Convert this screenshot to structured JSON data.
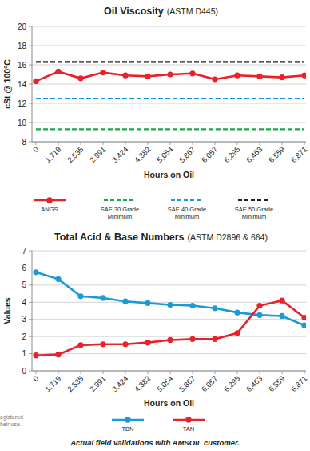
{
  "chart_data": [
    {
      "type": "line",
      "title": "Oil Viscosity",
      "subtitle": "(ASTM D445)",
      "x_label": "Hours on Oil",
      "y_label": "cSt @ 100°C",
      "categories": [
        "0",
        "1,719",
        "2,535",
        "2,991",
        "3,424",
        "4,382",
        "5,054",
        "5,867",
        "6,057",
        "6,295",
        "6,463",
        "6,559",
        "6,871"
      ],
      "ylim": [
        8,
        20
      ],
      "yticks": [
        8,
        10,
        12,
        14,
        16,
        18,
        20
      ],
      "grid": true,
      "legend": "bottom",
      "series": [
        {
          "name": "ANGS",
          "color": "#e8222b",
          "marker": "circle",
          "line_style": "solid",
          "values": [
            14.3,
            15.3,
            14.6,
            15.2,
            14.9,
            14.8,
            15.0,
            15.1,
            14.5,
            14.9,
            14.8,
            14.7,
            14.9
          ]
        },
        {
          "name": "SAE 30 Grade Minimum",
          "color": "#1aa84a",
          "marker": "none",
          "line_style": "dashed",
          "values": [
            9.3,
            9.3,
            9.3,
            9.3,
            9.3,
            9.3,
            9.3,
            9.3,
            9.3,
            9.3,
            9.3,
            9.3,
            9.3
          ]
        },
        {
          "name": "SAE 40 Grade Minimum",
          "color": "#1a9ad6",
          "marker": "none",
          "line_style": "dashed",
          "values": [
            12.5,
            12.5,
            12.5,
            12.5,
            12.5,
            12.5,
            12.5,
            12.5,
            12.5,
            12.5,
            12.5,
            12.5,
            12.5
          ]
        },
        {
          "name": "SAE 50 Grade Minimum",
          "color": "#231f20",
          "marker": "none",
          "line_style": "dashed",
          "values": [
            16.3,
            16.3,
            16.3,
            16.3,
            16.3,
            16.3,
            16.3,
            16.3,
            16.3,
            16.3,
            16.3,
            16.3,
            16.3
          ]
        }
      ]
    },
    {
      "type": "line",
      "title": "Total Acid & Base Numbers",
      "subtitle": "(ASTM D2896 & 664)",
      "x_label": "Hours on Oil",
      "y_label": "Values",
      "categories": [
        "0",
        "1,719",
        "2,535",
        "2,991",
        "3,424",
        "4,382",
        "5,054",
        "5,867",
        "6,057",
        "6,295",
        "6,463",
        "6,559",
        "6,871"
      ],
      "ylim": [
        0,
        7
      ],
      "yticks": [
        0,
        1,
        2,
        3,
        4,
        5,
        6,
        7
      ],
      "grid": true,
      "legend": "bottom",
      "series": [
        {
          "name": "TBN",
          "color": "#1a9ad6",
          "marker": "circle",
          "line_style": "solid",
          "values": [
            5.75,
            5.35,
            4.35,
            4.25,
            4.05,
            3.95,
            3.85,
            3.8,
            3.65,
            3.4,
            3.25,
            3.2,
            2.65
          ]
        },
        {
          "name": "TAN",
          "color": "#e8222b",
          "marker": "circle",
          "line_style": "solid",
          "values": [
            0.9,
            0.95,
            1.5,
            1.55,
            1.55,
            1.65,
            1.8,
            1.85,
            1.85,
            2.2,
            3.8,
            4.1,
            3.1
          ]
        }
      ]
    }
  ],
  "footer": "Actual field validations with AMSOIL customer.",
  "margin_text": [
    "egistered",
    "heir use."
  ]
}
